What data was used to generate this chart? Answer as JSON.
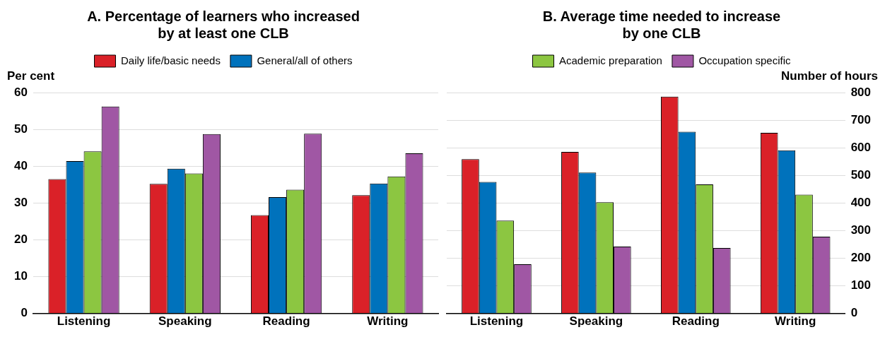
{
  "chart_data": [
    {
      "type": "bar",
      "title": "A. Percentage of learners who increased\nby at least one CLB",
      "ylabel": "Per cent",
      "categories": [
        "Listening",
        "Speaking",
        "Reading",
        "Writing"
      ],
      "series": [
        {
          "name": "Daily life/basic needs",
          "color": "#da2128",
          "values": [
            36.5,
            35.2,
            26.7,
            32.1
          ]
        },
        {
          "name": "General/all of others",
          "color": "#0072bc",
          "values": [
            41.4,
            39.3,
            31.6,
            35.3
          ]
        },
        {
          "color": "#8cc641",
          "values": [
            44.0,
            38.0,
            33.6,
            37.2
          ]
        },
        {
          "color": "#a057a4",
          "values": [
            56.2,
            48.7,
            48.8,
            43.5
          ]
        }
      ],
      "ylim": [
        0,
        60
      ],
      "yticks": [
        0,
        10,
        20,
        30,
        40,
        50,
        60
      ],
      "grid": "y",
      "legend": "top"
    },
    {
      "type": "bar",
      "title": "B. Average time needed to increase\nby one CLB",
      "y2label": "Number of hours",
      "categories": [
        "Listening",
        "Speaking",
        "Reading",
        "Writing"
      ],
      "series": [
        {
          "color": "#da2128",
          "values": [
            559,
            585,
            785,
            654
          ],
          "axis": "y2"
        },
        {
          "color": "#0072bc",
          "values": [
            476,
            510,
            658,
            591
          ],
          "axis": "y2"
        },
        {
          "name": "Academic preparation",
          "color": "#8cc641",
          "values": [
            336,
            403,
            467,
            430
          ],
          "axis": "y2"
        },
        {
          "name": "Occupation specific",
          "color": "#a057a4",
          "values": [
            178,
            242,
            237,
            278
          ],
          "axis": "y2"
        }
      ],
      "y2lim": [
        0,
        800
      ],
      "y2ticks": [
        0,
        100,
        200,
        300,
        400,
        500,
        600,
        700,
        800
      ],
      "grid": "y",
      "legend": "top"
    }
  ]
}
